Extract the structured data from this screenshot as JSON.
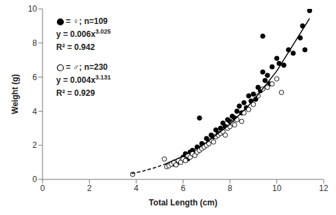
{
  "chart_data": {
    "type": "scatter",
    "x_label": "Total Length (cm)",
    "y_label": "Weight (g)",
    "xlim": [
      0,
      12
    ],
    "xticks": [
      0,
      2,
      4,
      6,
      8,
      10,
      12
    ],
    "ylim": [
      0,
      10
    ],
    "yticks": [
      0,
      2,
      4,
      6,
      8,
      10
    ],
    "grid": false,
    "series": [
      {
        "name": "= ♀; n=109",
        "color": "#000000",
        "marker": "filled",
        "x": [
          5.6,
          5.8,
          6.0,
          6.1,
          6.2,
          6.3,
          6.4,
          6.5,
          6.6,
          6.7,
          6.8,
          6.9,
          7.0,
          7.1,
          7.2,
          7.3,
          7.4,
          7.5,
          7.6,
          7.7,
          7.8,
          7.9,
          8.0,
          8.1,
          8.2,
          8.3,
          8.4,
          8.5,
          8.6,
          8.7,
          8.8,
          8.9,
          9.0,
          9.1,
          9.2,
          9.3,
          9.4,
          9.4,
          9.5,
          9.6,
          9.7,
          9.8,
          10.0,
          10.1,
          10.3,
          10.5,
          10.7,
          11.0,
          11.1,
          11.2,
          11.4
        ],
        "values": [
          0.9,
          1.0,
          1.3,
          1.5,
          1.2,
          1.6,
          1.7,
          1.5,
          1.9,
          3.6,
          2.1,
          2.0,
          2.4,
          2.2,
          2.6,
          2.5,
          2.9,
          2.7,
          3.0,
          3.3,
          3.1,
          3.5,
          3.4,
          3.7,
          3.6,
          4.0,
          4.3,
          3.9,
          4.5,
          4.2,
          4.9,
          4.6,
          5.0,
          4.7,
          5.4,
          5.2,
          6.3,
          8.4,
          5.8,
          6.1,
          5.6,
          6.6,
          7.1,
          6.8,
          6.7,
          7.6,
          7.4,
          8.3,
          9.0,
          7.6,
          9.9
        ]
      },
      {
        "name": "= ♂; n=230",
        "color": "#000000",
        "marker": "open",
        "x": [
          3.85,
          5.2,
          5.3,
          5.4,
          5.5,
          5.6,
          5.7,
          5.8,
          5.9,
          6.0,
          6.1,
          6.2,
          6.3,
          6.4,
          6.5,
          6.6,
          6.7,
          6.8,
          6.9,
          7.0,
          7.1,
          7.2,
          7.3,
          7.4,
          7.5,
          7.6,
          7.7,
          7.8,
          7.9,
          8.0,
          8.1,
          8.2,
          8.3,
          8.5,
          8.6,
          8.8,
          9.0,
          9.2,
          9.4,
          9.6,
          9.8,
          10.0,
          10.2
        ],
        "values": [
          0.3,
          1.2,
          0.75,
          0.8,
          0.9,
          1.0,
          0.85,
          1.1,
          1.0,
          1.2,
          1.1,
          1.4,
          1.3,
          1.5,
          1.4,
          1.6,
          1.7,
          1.8,
          1.9,
          2.0,
          2.1,
          2.3,
          2.2,
          2.5,
          2.6,
          2.7,
          2.8,
          2.6,
          3.0,
          3.1,
          3.3,
          3.2,
          3.5,
          3.4,
          3.9,
          4.1,
          4.4,
          4.9,
          5.3,
          5.4,
          5.6,
          5.9,
          5.1
        ]
      },
      {
        "type": "line",
        "line_style": "dashed",
        "color": "#000000",
        "x": [
          3.8,
          4.3,
          4.8,
          5.2
        ],
        "values": [
          0.34,
          0.49,
          0.69,
          0.88
        ]
      },
      {
        "type": "line",
        "line_style": "solid",
        "color": "#000000",
        "x": [
          5.2,
          6,
          7,
          8,
          9,
          10,
          11.4
        ],
        "values": [
          0.88,
          1.36,
          2.16,
          3.24,
          4.62,
          6.36,
          9.44
        ]
      }
    ],
    "annotations": [
      {
        "text": "y = 0.006x",
        "superscript": "3.025"
      },
      {
        "text": "R² = 0.942"
      },
      {
        "text": "y = 0.004x",
        "superscript": "3.131"
      },
      {
        "text": "R² = 0.929"
      }
    ]
  }
}
